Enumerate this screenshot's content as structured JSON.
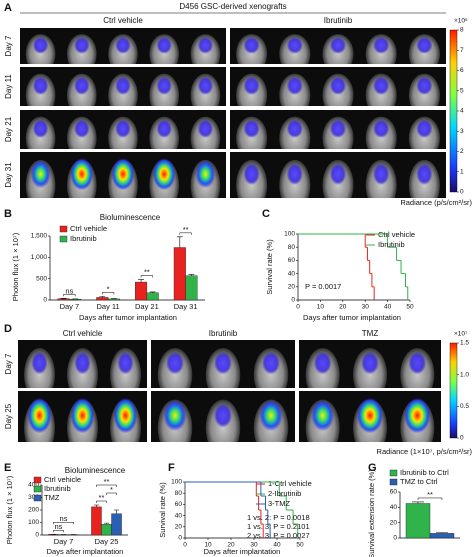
{
  "panel_labels": [
    "A",
    "B",
    "C",
    "D",
    "E",
    "F",
    "G"
  ],
  "figure_a": {
    "title": "D456 GSC-derived xenografts",
    "columns": [
      "Ctrl vehicle",
      "Ibrutinib"
    ],
    "rows": [
      "Day 7",
      "Day 11",
      "Day 21",
      "Day 31"
    ],
    "colorbar": {
      "unit": "×10⁶",
      "ylim": [
        0,
        8
      ],
      "ticks": [
        0,
        1,
        2,
        3,
        4,
        5,
        6,
        7,
        8
      ],
      "label": "Radiance (p/s/cm²/sr)"
    }
  },
  "figure_d": {
    "columns": [
      "Ctrl vehicle",
      "Ibrutinib",
      "TMZ"
    ],
    "rows": [
      "Day 7",
      "Day 25"
    ],
    "colorbar": {
      "unit": "×10⁷",
      "ylim": [
        0,
        1.5
      ],
      "ticks": [
        0,
        0.5,
        {
          "value": 1,
          "label": "1.0"
        },
        1.5
      ],
      "label": "Radiance (1×10⁷, p/s/cm²/sr)"
    }
  },
  "chart_data": [
    {
      "type": "bar",
      "title": "Bioluminescence",
      "categories": [
        "Day 7",
        "Day 11",
        "Day 21",
        "Day 31"
      ],
      "series": [
        {
          "name": "Ctrl vehicle",
          "color": "#e8231f",
          "values": [
            30,
            60,
            420,
            1230
          ],
          "errors": [
            10,
            25,
            60,
            250
          ]
        },
        {
          "name": "Ibrutinib",
          "color": "#2fb34a",
          "values": [
            20,
            25,
            170,
            570
          ],
          "errors": [
            5,
            8,
            20,
            30
          ]
        }
      ],
      "significance": [
        [
          "ns"
        ],
        [
          "*"
        ],
        [
          "**"
        ],
        [
          "**"
        ]
      ],
      "ylabel": "Photon flux (1 × 10⁷)",
      "xlabel": "Days after tumor implantation",
      "ylim": [
        0,
        1500
      ],
      "yticks": [
        0,
        500,
        {
          "value": 1000,
          "label": "1,000"
        },
        {
          "value": 1500,
          "label": "1,500"
        }
      ]
    },
    {
      "type": "survival",
      "ylabel": "Survival rate (%)",
      "xlabel": "Days after tumor implantation",
      "series": [
        {
          "name": "Ctrl vehicle",
          "color": "#e8231f",
          "x": [
            0,
            30,
            31,
            32,
            33,
            34
          ],
          "values": [
            100,
            80,
            60,
            40,
            20,
            0
          ]
        },
        {
          "name": "Ibrutinib",
          "color": "#2fb34a",
          "x": [
            0,
            40,
            44,
            46,
            48,
            49
          ],
          "values": [
            100,
            80,
            60,
            40,
            20,
            0
          ]
        }
      ],
      "annotations": [
        "P = 0.0017"
      ],
      "xlim": [
        0,
        50
      ],
      "xticks": [
        0,
        10,
        20,
        30,
        40,
        50
      ],
      "ylim": [
        0,
        100
      ],
      "yticks": [
        0,
        20,
        40,
        60,
        80,
        100
      ]
    },
    {
      "type": "bar",
      "title": "Bioluminescence",
      "categories": [
        "Day 7",
        "Day 25"
      ],
      "series": [
        {
          "name": "Ctrl vehicle",
          "color": "#e8231f",
          "values": [
            5,
            225
          ],
          "errors": [
            1,
            15
          ]
        },
        {
          "name": "Ibrutinib",
          "color": "#2fb34a",
          "values": [
            3,
            85
          ],
          "errors": [
            1,
            10
          ]
        },
        {
          "name": "TMZ",
          "color": "#2b5fb4",
          "values": [
            3,
            170
          ],
          "errors": [
            1,
            30
          ]
        }
      ],
      "significance": [
        [
          "ns",
          "ns"
        ],
        [
          "**",
          "*",
          "**"
        ]
      ],
      "ylabel": "Photon flux (1 × 10⁷)",
      "xlabel": "Days after implantation",
      "ylim": [
        0,
        400
      ],
      "yticks": [
        0,
        100,
        200,
        300,
        400
      ]
    },
    {
      "type": "survival",
      "ylabel": "Survival rate (%)",
      "xlabel": "Days after implantation",
      "series": [
        {
          "name": "1-Ctrl vehicle",
          "color": "#e8231f",
          "x": [
            0,
            31,
            32,
            33,
            34
          ],
          "values": [
            100,
            75,
            50,
            25,
            0
          ]
        },
        {
          "name": "2-Ibrutinib",
          "color": "#2fb34a",
          "x": [
            0,
            41,
            44,
            47,
            49
          ],
          "values": [
            100,
            75,
            50,
            25,
            0
          ]
        },
        {
          "name": "3-TMZ",
          "color": "#2b5fb4",
          "x": [
            0,
            33,
            35,
            36,
            37
          ],
          "values": [
            100,
            75,
            50,
            25,
            0
          ]
        }
      ],
      "annotations": [
        "1 vs. 2: P = 0.0018",
        "1 vs. 3: P = 0.2101",
        "2 vs. 3: P = 0.0027"
      ],
      "xlim": [
        0,
        50
      ],
      "xticks": [
        0,
        10,
        20,
        30,
        40,
        50
      ],
      "ylim": [
        0,
        100
      ],
      "yticks": [
        0,
        20,
        40,
        60,
        80,
        100
      ]
    },
    {
      "type": "bar",
      "ylabel": "Survival extension rate (%)",
      "series": [
        {
          "name": "Ibrutinib to Ctrl",
          "color": "#2fb34a",
          "values": [
            45
          ],
          "errors": [
            2
          ]
        },
        {
          "name": "TMZ to Ctrl",
          "color": "#2b5fb4",
          "values": [
            6
          ],
          "errors": [
            1
          ]
        }
      ],
      "significance": [
        [
          "**"
        ]
      ],
      "ylim": [
        0,
        60
      ],
      "yticks": [
        0,
        20,
        40,
        60
      ]
    }
  ]
}
